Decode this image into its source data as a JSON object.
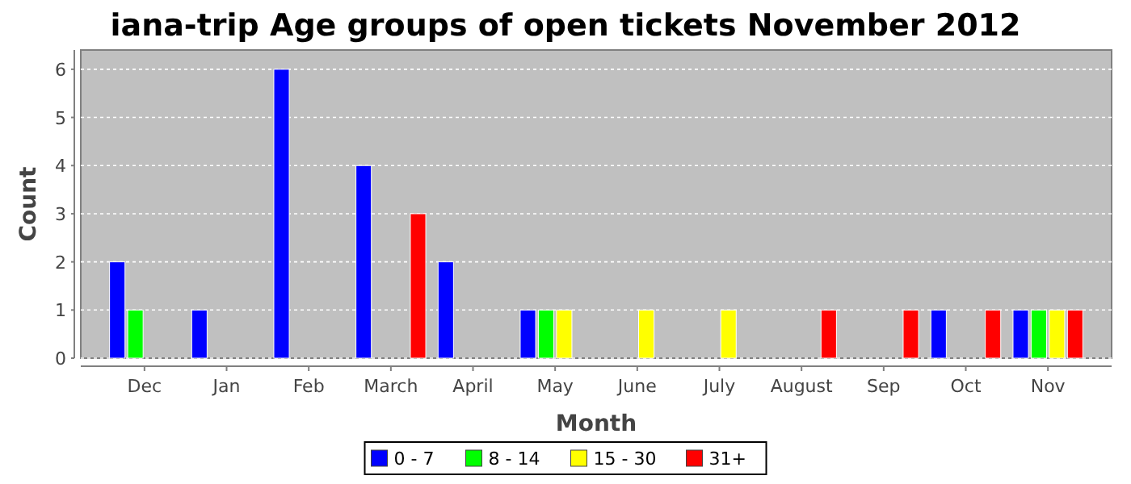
{
  "chart_data": {
    "type": "bar",
    "title": "iana-trip Age groups of open tickets November 2012",
    "xlabel": "Month",
    "ylabel": "Count",
    "categories": [
      "Dec",
      "Jan",
      "Feb",
      "March",
      "April",
      "May",
      "June",
      "July",
      "August",
      "Sep",
      "Oct",
      "Nov"
    ],
    "series": [
      {
        "name": "0 - 7",
        "color": "#0000ff",
        "values": [
          2,
          1,
          6,
          4,
          2,
          1,
          null,
          null,
          null,
          null,
          1,
          1
        ]
      },
      {
        "name": "8 - 14",
        "color": "#00ff00",
        "values": [
          1,
          null,
          null,
          null,
          null,
          1,
          null,
          null,
          null,
          null,
          null,
          1
        ]
      },
      {
        "name": "15 - 30",
        "color": "#ffff00",
        "values": [
          null,
          null,
          null,
          null,
          null,
          1,
          1,
          1,
          null,
          null,
          null,
          1
        ]
      },
      {
        "name": "31+",
        "color": "#ff0000",
        "values": [
          null,
          null,
          null,
          3,
          null,
          null,
          null,
          null,
          1,
          1,
          1,
          1
        ]
      }
    ],
    "ylim": [
      0,
      6.4
    ],
    "yticks": [
      0,
      1,
      2,
      3,
      4,
      5,
      6
    ],
    "grid": "y",
    "legend": "bottom"
  }
}
